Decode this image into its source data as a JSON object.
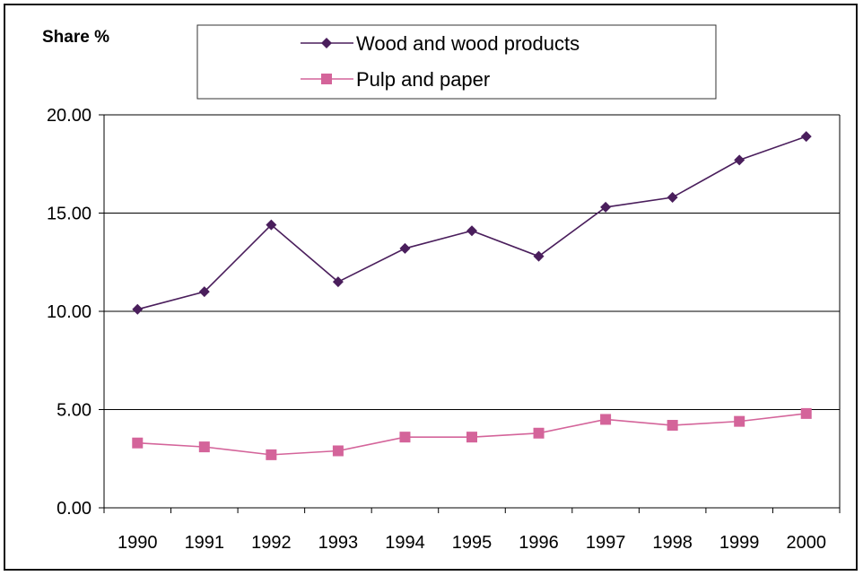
{
  "chart_data": {
    "type": "line",
    "ylabel": "Share %",
    "categories": [
      "1990",
      "1991",
      "1992",
      "1993",
      "1994",
      "1995",
      "1996",
      "1997",
      "1998",
      "1999",
      "2000"
    ],
    "ylim": [
      0,
      20
    ],
    "yticks": [
      "0.00",
      "5.00",
      "10.00",
      "15.00",
      "20.00"
    ],
    "grid": "horizontal",
    "legend_position": "top",
    "series": [
      {
        "name": "Wood and wood products",
        "values": [
          10.1,
          11.0,
          14.4,
          11.5,
          13.2,
          14.1,
          12.8,
          15.3,
          15.8,
          17.7,
          18.9
        ],
        "color": "#4a1e5c",
        "marker": "diamond"
      },
      {
        "name": "Pulp and paper",
        "values": [
          3.3,
          3.1,
          2.7,
          2.9,
          3.6,
          3.6,
          3.8,
          4.5,
          4.2,
          4.4,
          4.8
        ],
        "color": "#d4649a",
        "marker": "square"
      }
    ]
  }
}
